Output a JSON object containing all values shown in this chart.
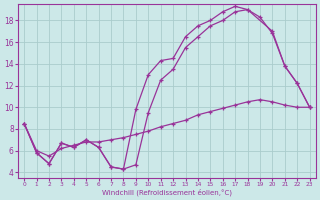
{
  "xlabel": "Windchill (Refroidissement éolien,°C)",
  "bg_color": "#cce8e8",
  "line_color": "#993399",
  "grid_color": "#aacccc",
  "xlim": [
    -0.5,
    23.5
  ],
  "ylim": [
    3.5,
    19.5
  ],
  "xticks": [
    0,
    1,
    2,
    3,
    4,
    5,
    6,
    7,
    8,
    9,
    10,
    11,
    12,
    13,
    14,
    15,
    16,
    17,
    18,
    19,
    20,
    21,
    22,
    23
  ],
  "yticks": [
    4,
    6,
    8,
    10,
    12,
    14,
    16,
    18
  ],
  "line1_x": [
    0,
    1,
    2,
    3,
    4,
    5,
    6,
    7,
    8,
    9,
    10,
    11,
    12,
    13,
    14,
    15,
    16,
    17,
    18,
    20,
    21,
    22,
    23
  ],
  "line1_y": [
    8.5,
    5.8,
    4.8,
    6.7,
    6.3,
    7.0,
    6.3,
    4.5,
    4.3,
    9.8,
    13.0,
    14.3,
    14.5,
    16.5,
    17.5,
    18.0,
    18.8,
    19.3,
    19.0,
    17.0,
    13.8,
    12.2,
    10.0
  ],
  "line2_x": [
    0,
    1,
    2,
    3,
    4,
    5,
    6,
    7,
    8,
    9,
    10,
    11,
    12,
    13,
    14,
    15,
    16,
    17,
    18,
    19,
    20,
    21,
    22,
    23
  ],
  "line2_y": [
    8.5,
    5.8,
    4.8,
    6.7,
    6.3,
    7.0,
    6.3,
    4.5,
    4.3,
    4.7,
    9.5,
    12.5,
    13.5,
    15.5,
    16.5,
    17.5,
    18.0,
    18.8,
    19.0,
    18.3,
    16.8,
    13.8,
    12.2,
    10.0
  ],
  "line3_x": [
    0,
    1,
    2,
    3,
    4,
    5,
    6,
    7,
    8,
    9,
    10,
    11,
    12,
    13,
    14,
    15,
    16,
    17,
    18,
    19,
    20,
    21,
    22,
    23
  ],
  "line3_y": [
    8.5,
    6.0,
    5.5,
    6.2,
    6.5,
    6.8,
    6.8,
    7.0,
    7.2,
    7.5,
    7.8,
    8.2,
    8.5,
    8.8,
    9.3,
    9.6,
    9.9,
    10.2,
    10.5,
    10.7,
    10.5,
    10.2,
    10.0,
    10.0
  ]
}
